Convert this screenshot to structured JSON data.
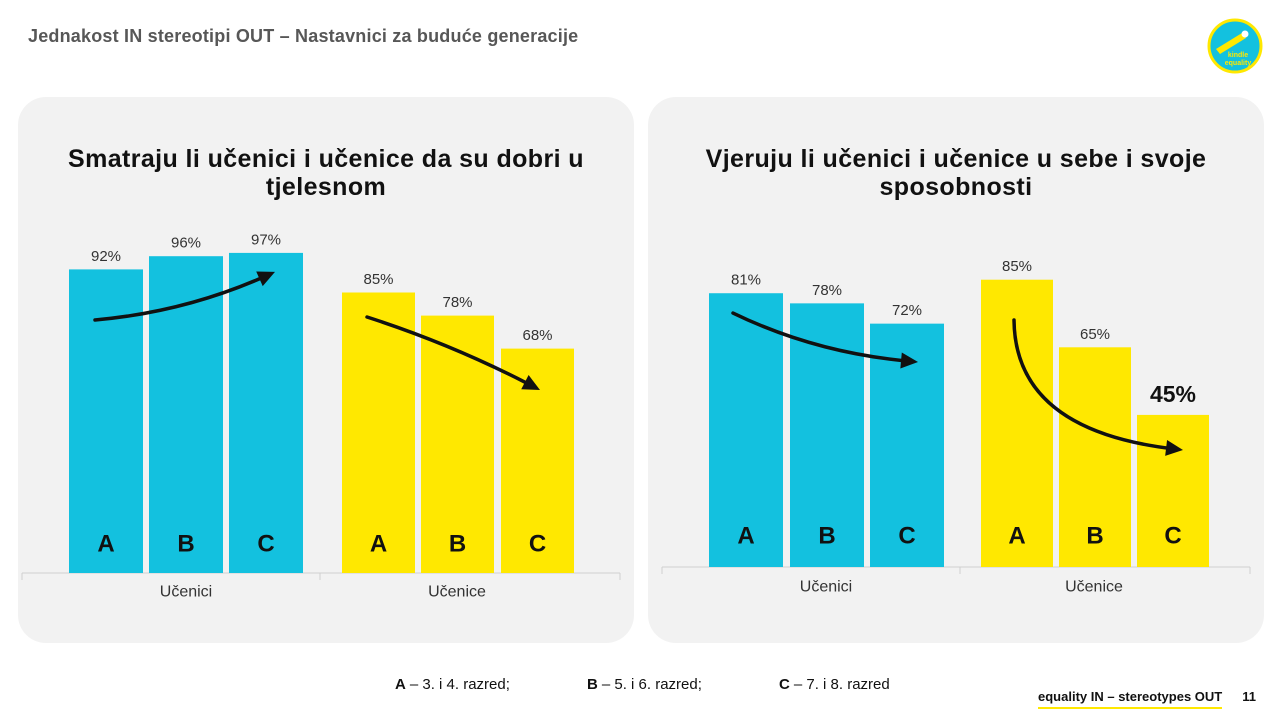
{
  "header": {
    "title": "Jednakost IN stereotipi OUT – Nastavnici za buduće generacije"
  },
  "logo": {
    "icon": "kindle-equality-logo-icon",
    "line1": "kindle",
    "line2": "equality"
  },
  "colors": {
    "cyan": "#13C1DF",
    "yellow": "#FFE800",
    "panel_background": "#F2F2F2"
  },
  "chart_data": [
    {
      "type": "bar",
      "title": "Smatraju li učenici i učenice da su dobri u tjelesnom",
      "categories": [
        "Učenici",
        "Učenice"
      ],
      "category_colors": [
        "#13C1DF",
        "#FFE800"
      ],
      "series": [
        {
          "name": "A",
          "values": [
            92,
            85
          ],
          "labels": [
            "92%",
            "85%"
          ]
        },
        {
          "name": "B",
          "values": [
            96,
            78
          ],
          "labels": [
            "96%",
            "78%"
          ]
        },
        {
          "name": "C",
          "values": [
            97,
            68
          ],
          "labels": [
            "97%",
            "68%"
          ]
        }
      ],
      "ylim": [
        0,
        100
      ],
      "grid": false,
      "legend": "bottom",
      "trend_arrow_icons": [
        "trend-up-arrow-icon",
        "trend-down-arrow-icon"
      ]
    },
    {
      "type": "bar",
      "title": "Vjeruju li učenici i učenice u sebe i svoje sposobnosti",
      "categories": [
        "Učenici",
        "Učenice"
      ],
      "category_colors": [
        "#13C1DF",
        "#FFE800"
      ],
      "series": [
        {
          "name": "A",
          "values": [
            81,
            85
          ],
          "labels": [
            "81%",
            "85%"
          ]
        },
        {
          "name": "B",
          "values": [
            78,
            65
          ],
          "labels": [
            "78%",
            "65%"
          ]
        },
        {
          "name": "C",
          "values": [
            72,
            45
          ],
          "labels": [
            "72%",
            "45%"
          ],
          "emphasis": [
            false,
            true
          ]
        }
      ],
      "ylim": [
        0,
        100
      ],
      "grid": false,
      "legend": "bottom",
      "trend_arrow_icons": [
        "trend-down-arrow-icon",
        "trend-down-arrow-icon"
      ]
    }
  ],
  "legend": [
    {
      "key": "A",
      "text": "– 3. i 4. razred;"
    },
    {
      "key": "B",
      "text": "– 5. i 6. razred;"
    },
    {
      "key": "C",
      "text": "– 7. i 8. razred"
    }
  ],
  "footer": {
    "brand": "equality IN – stereotypes OUT",
    "page_number": "11"
  }
}
